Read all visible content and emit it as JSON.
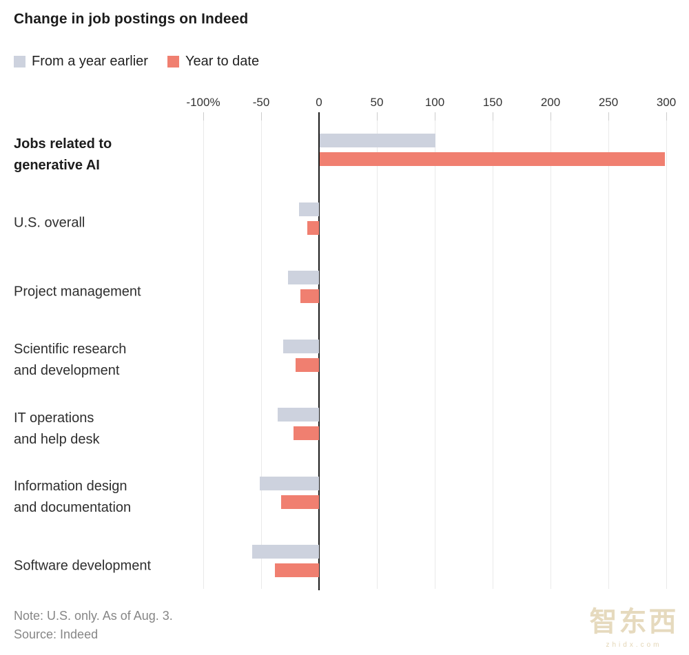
{
  "title": "Change in job postings on Indeed",
  "legend": [
    {
      "label": "From a year earlier",
      "color": "#cdd2de"
    },
    {
      "label": "Year to date",
      "color": "#f07f70"
    }
  ],
  "chart_data": {
    "type": "bar",
    "orientation": "horizontal",
    "unit": "percent",
    "title": "Change in job postings on Indeed",
    "axis": {
      "range": [
        -100,
        300
      ],
      "ticks": [
        -100,
        -50,
        0,
        50,
        100,
        150,
        200,
        250,
        300
      ],
      "tick_labels": [
        "-100%",
        "-50",
        "0",
        "50",
        "100",
        "150",
        "200",
        "250",
        "300"
      ],
      "grid": true,
      "zero_line": true
    },
    "legend_position": "top-left",
    "categories": [
      {
        "label": "Jobs related to generative AI",
        "lines": [
          "Jobs related to",
          "generative AI"
        ],
        "bold": true
      },
      {
        "label": "U.S. overall",
        "lines": [
          "U.S. overall"
        ],
        "bold": false
      },
      {
        "label": "Project management",
        "lines": [
          "Project management"
        ],
        "bold": false
      },
      {
        "label": "Scientific research and development",
        "lines": [
          "Scientific research",
          "and development"
        ],
        "bold": false
      },
      {
        "label": "IT operations and help desk",
        "lines": [
          "IT operations",
          "and help desk"
        ],
        "bold": false
      },
      {
        "label": "Information design and documentation",
        "lines": [
          "Information design",
          "and documentation"
        ],
        "bold": false
      },
      {
        "label": "Software development",
        "lines": [
          "Software development"
        ],
        "bold": false
      }
    ],
    "series": [
      {
        "name": "From a year earlier",
        "color": "#cdd2de",
        "values": [
          100,
          -17,
          -27,
          -31,
          -36,
          -51,
          -58
        ]
      },
      {
        "name": "Year to date",
        "color": "#f07f70",
        "values": [
          298,
          -10,
          -16,
          -20,
          -22,
          -33,
          -38
        ]
      }
    ]
  },
  "notes": {
    "note": "Note: U.S. only. As of Aug. 3.",
    "source": "Source: Indeed"
  },
  "watermark": {
    "text": "智东西",
    "subtext": "zhidx.com"
  },
  "colors": {
    "series_gray": "#cdd2de",
    "series_salmon": "#f07f70",
    "gridline": "#e9e9e9",
    "zero_line": "#1a1a1a",
    "title_text": "#1c1c1c",
    "label_text": "#2e2e2e",
    "footnote_text": "#868686",
    "watermark_gold": "#decea8"
  }
}
